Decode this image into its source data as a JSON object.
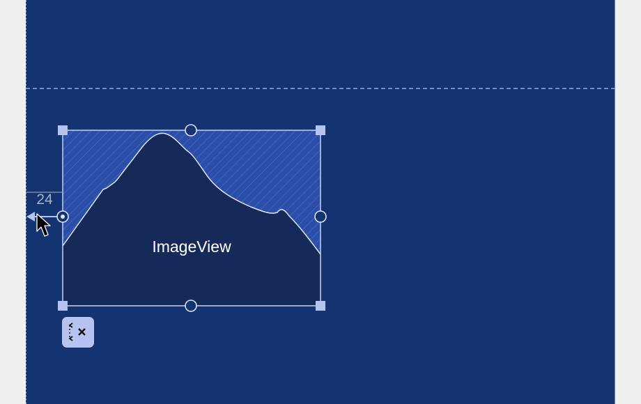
{
  "image_view": {
    "label": "ImageView",
    "icon": "mountain-placeholder-icon"
  },
  "constraint": {
    "start_margin": "24"
  },
  "toolbar": {
    "clear_constraints_icon": "clear-constraints-icon"
  },
  "colors": {
    "canvas": "#143371",
    "image_fill": "#162a5a",
    "hatch_bg": "#2b4fa8",
    "handle": "#b6c3ee",
    "outline": "#c8d1ee"
  }
}
